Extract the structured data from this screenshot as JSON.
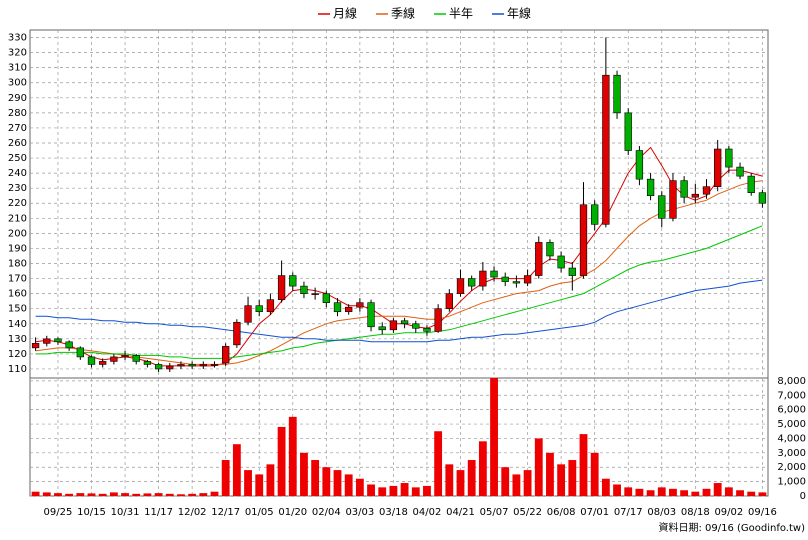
{
  "chart_data": {
    "type": "candlestick",
    "categories": [
      null,
      null,
      "09/25",
      null,
      null,
      "10/15",
      null,
      null,
      "10/31",
      null,
      null,
      "11/17",
      null,
      null,
      "12/02",
      null,
      null,
      "12/17",
      null,
      null,
      "01/05",
      null,
      null,
      "01/20",
      null,
      null,
      "02/04",
      null,
      null,
      "03/03",
      null,
      null,
      "03/18",
      null,
      null,
      "04/02",
      null,
      null,
      "04/21",
      null,
      null,
      "05/07",
      null,
      null,
      "05/22",
      null,
      null,
      "06/08",
      null,
      null,
      "07/01",
      null,
      null,
      "07/17",
      null,
      null,
      "08/03",
      null,
      null,
      "08/18",
      null,
      null,
      "09/02",
      null,
      null,
      "09/16"
    ],
    "open": [
      124,
      127,
      130,
      128,
      124,
      118,
      113,
      115,
      118,
      119,
      115,
      113,
      110,
      112,
      113,
      112,
      113,
      114,
      126,
      141,
      152,
      148,
      156,
      172,
      165,
      160,
      160,
      154,
      148,
      151,
      154,
      138,
      136,
      142,
      140,
      137,
      135,
      150,
      160,
      170,
      165,
      175,
      171,
      168,
      167,
      172,
      194,
      185,
      177,
      172,
      219,
      206,
      305,
      280,
      255,
      236,
      225,
      210,
      235,
      224,
      226,
      231,
      256,
      244,
      238,
      227
    ],
    "high": [
      131,
      132,
      131,
      129,
      125,
      119,
      117,
      120,
      122,
      120,
      116,
      114,
      114,
      115,
      115,
      115,
      115,
      127,
      143,
      158,
      156,
      160,
      182,
      174,
      168,
      164,
      162,
      157,
      153,
      157,
      156,
      141,
      144,
      144,
      142,
      139,
      153,
      163,
      176,
      172,
      181,
      178,
      174,
      172,
      176,
      198,
      196,
      188,
      181,
      234,
      222,
      330,
      308,
      283,
      258,
      240,
      228,
      240,
      238,
      233,
      236,
      262,
      258,
      247,
      240,
      229
    ],
    "low": [
      122,
      125,
      126,
      122,
      116,
      111,
      111,
      113,
      116,
      113,
      111,
      108,
      108,
      110,
      110,
      110,
      111,
      112,
      124,
      139,
      145,
      146,
      154,
      162,
      157,
      156,
      151,
      145,
      146,
      148,
      135,
      133,
      134,
      137,
      134,
      132,
      134,
      148,
      158,
      162,
      162,
      168,
      165,
      164,
      165,
      170,
      182,
      174,
      162,
      170,
      202,
      204,
      276,
      252,
      232,
      222,
      204,
      208,
      220,
      220,
      223,
      228,
      240,
      236,
      225,
      217
    ],
    "close": [
      127,
      130,
      128,
      124,
      118,
      113,
      115,
      118,
      119,
      115,
      113,
      110,
      112,
      113,
      112,
      113,
      113,
      125,
      141,
      152,
      148,
      156,
      172,
      165,
      160,
      160,
      154,
      148,
      151,
      154,
      138,
      136,
      142,
      140,
      137,
      135,
      150,
      160,
      170,
      165,
      175,
      171,
      168,
      167,
      172,
      194,
      185,
      177,
      172,
      219,
      206,
      305,
      280,
      255,
      236,
      225,
      210,
      235,
      224,
      226,
      231,
      256,
      244,
      238,
      227,
      220
    ],
    "up_color": "#e00000",
    "down_color": "#00b000",
    "series": [
      {
        "name": "月線",
        "color": "#dd0000",
        "values": [
          128,
          129,
          128,
          126,
          122,
          118,
          116,
          117,
          118,
          117,
          115,
          112,
          112,
          112,
          112,
          112,
          112,
          114,
          120,
          130,
          140,
          146,
          155,
          162,
          163,
          162,
          160,
          156,
          152,
          152,
          150,
          145,
          140,
          140,
          138,
          137,
          140,
          147,
          155,
          162,
          167,
          170,
          170,
          170,
          170,
          178,
          183,
          182,
          180,
          190,
          200,
          210,
          225,
          240,
          250,
          257,
          245,
          232,
          225,
          222,
          225,
          235,
          242,
          242,
          240,
          238
        ]
      },
      {
        "name": "季線",
        "color": "#e06010",
        "values": [
          122,
          123,
          124,
          124,
          123,
          122,
          121,
          120,
          119,
          118,
          117,
          116,
          115,
          114,
          113,
          113,
          113,
          113,
          114,
          116,
          119,
          122,
          126,
          130,
          134,
          137,
          140,
          142,
          143,
          144,
          145,
          145,
          145,
          145,
          144,
          143,
          143,
          145,
          148,
          151,
          154,
          156,
          158,
          160,
          161,
          162,
          165,
          167,
          168,
          172,
          176,
          182,
          190,
          198,
          205,
          210,
          214,
          216,
          218,
          220,
          222,
          226,
          229,
          232,
          234,
          235
        ]
      },
      {
        "name": "半年",
        "color": "#00c800",
        "values": [
          120,
          120,
          121,
          121,
          121,
          121,
          120,
          120,
          120,
          119,
          119,
          119,
          118,
          118,
          117,
          117,
          117,
          117,
          118,
          119,
          120,
          121,
          122,
          124,
          125,
          127,
          128,
          129,
          130,
          131,
          132,
          133,
          133,
          134,
          134,
          134,
          135,
          136,
          138,
          140,
          142,
          144,
          146,
          148,
          150,
          152,
          154,
          156,
          158,
          160,
          164,
          168,
          172,
          176,
          179,
          181,
          182,
          184,
          186,
          188,
          190,
          193,
          196,
          199,
          202,
          205
        ]
      },
      {
        "name": "年線",
        "color": "#1050d0",
        "values": [
          145,
          145,
          144,
          144,
          143,
          143,
          142,
          142,
          141,
          141,
          140,
          140,
          139,
          139,
          138,
          138,
          137,
          136,
          135,
          134,
          133,
          132,
          131,
          131,
          130,
          130,
          129,
          129,
          129,
          129,
          128,
          128,
          128,
          128,
          128,
          128,
          129,
          129,
          130,
          131,
          131,
          132,
          133,
          133,
          134,
          135,
          136,
          137,
          138,
          139,
          141,
          145,
          148,
          150,
          152,
          154,
          156,
          158,
          160,
          162,
          163,
          164,
          165,
          167,
          168,
          169
        ]
      }
    ],
    "ylim": [
      104,
      335
    ],
    "yticks": [
      110,
      120,
      130,
      140,
      150,
      160,
      170,
      180,
      190,
      200,
      210,
      220,
      230,
      240,
      250,
      260,
      270,
      280,
      290,
      300,
      310,
      320,
      330
    ],
    "grid": true,
    "volume": {
      "color": "#ee0000",
      "values": [
        300,
        250,
        200,
        150,
        200,
        180,
        150,
        250,
        200,
        150,
        180,
        200,
        150,
        120,
        150,
        200,
        300,
        2500,
        3600,
        1800,
        1500,
        2200,
        4800,
        5500,
        3000,
        2500,
        2000,
        1800,
        1500,
        1200,
        800,
        600,
        700,
        900,
        600,
        700,
        4500,
        2200,
        1800,
        2500,
        3800,
        8200,
        2000,
        1500,
        1800,
        4000,
        3000,
        2200,
        2500,
        4300,
        3000,
        1200,
        800,
        600,
        500,
        400,
        600,
        500,
        400,
        300,
        500,
        900,
        600,
        400,
        300,
        250
      ],
      "ylim": [
        0,
        8200
      ],
      "yticks": [
        0,
        {
          "value": 1000,
          "label": "1,000"
        },
        {
          "value": 2000,
          "label": "2,000"
        },
        {
          "value": 3000,
          "label": "3,000"
        },
        {
          "value": 4000,
          "label": "4,000"
        },
        {
          "value": 5000,
          "label": "5,000"
        },
        {
          "value": 6000,
          "label": "6,000"
        },
        {
          "value": 7000,
          "label": "7,000"
        },
        {
          "value": 8000,
          "label": "8,000"
        }
      ]
    },
    "footnote": "資料日期: 09/16 (Goodinfo.tw)"
  }
}
